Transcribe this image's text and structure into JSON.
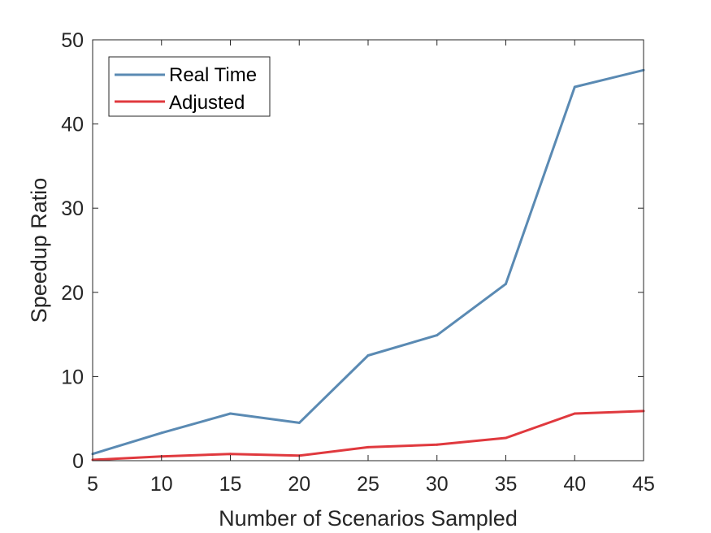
{
  "chart_data": {
    "type": "line",
    "title": "",
    "xlabel": "Number of Scenarios Sampled",
    "ylabel": "Speedup Ratio",
    "x": [
      5,
      10,
      15,
      20,
      25,
      30,
      35,
      40,
      45
    ],
    "xlim": [
      5,
      45
    ],
    "ylim": [
      0,
      50
    ],
    "xticks": [
      5,
      10,
      15,
      20,
      25,
      30,
      35,
      40,
      45
    ],
    "yticks": [
      0,
      10,
      20,
      30,
      40,
      50
    ],
    "grid": false,
    "legend_position": "top-left",
    "series": [
      {
        "name": "Real Time",
        "color": "#5a8ab3",
        "values": [
          0.8,
          3.3,
          5.6,
          4.5,
          12.5,
          14.9,
          21.0,
          44.4,
          46.4
        ]
      },
      {
        "name": "Adjusted",
        "color": "#e0393e",
        "values": [
          0.1,
          0.5,
          0.8,
          0.6,
          1.6,
          1.9,
          2.7,
          5.6,
          5.9
        ]
      }
    ]
  }
}
